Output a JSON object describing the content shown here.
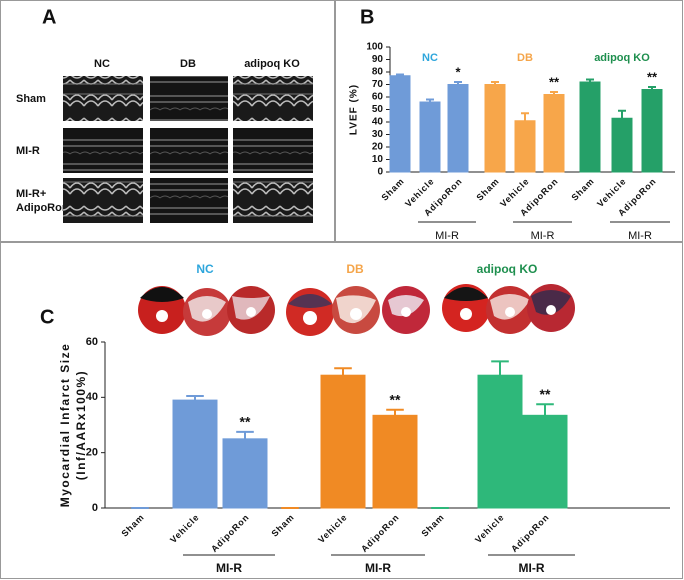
{
  "panel_a": {
    "panel_label": "A",
    "columns": [
      "NC",
      "DB",
      "adipoq KO"
    ],
    "rows": [
      "Sham",
      "MI-R",
      [
        "MI-R+",
        "AdipoRon"
      ]
    ]
  },
  "chart_data": [
    {
      "type": "bar",
      "panel_label": "B",
      "ylabel": "LVEF (%)",
      "ylim": [
        0,
        100
      ],
      "yticks": [
        0,
        10,
        20,
        30,
        40,
        50,
        60,
        70,
        80,
        90,
        100
      ],
      "groups": [
        {
          "name": "NC",
          "label_color": "#2ea6dc",
          "color": "#6f9bd8",
          "categories": [
            "Sham",
            "Vehicle",
            "AdipoRon"
          ],
          "values": [
            77,
            56,
            70
          ],
          "errors": [
            1,
            2,
            2
          ],
          "annotations": [
            null,
            null,
            "*"
          ],
          "bracket_label": "MI-R"
        },
        {
          "name": "DB",
          "label_color": "#f5a54a",
          "color": "#f7a64a",
          "categories": [
            "Sham",
            "Vehicle",
            "AdipoRon"
          ],
          "values": [
            70,
            41,
            62
          ],
          "errors": [
            2,
            6,
            2
          ],
          "annotations": [
            null,
            null,
            "**"
          ],
          "bracket_label": "MI-R"
        },
        {
          "name": "adipoq KO",
          "label_color": "#1e8f4e",
          "color": "#25a068",
          "categories": [
            "Sham",
            "Vehicle",
            "AdipoRon"
          ],
          "values": [
            72,
            43,
            66
          ],
          "errors": [
            2,
            6,
            2
          ],
          "annotations": [
            null,
            null,
            "**"
          ],
          "bracket_label": "MI-R"
        }
      ]
    },
    {
      "type": "bar",
      "panel_label": "C",
      "ylabel": [
        "Myocardial Infarct Size",
        "(Inf/AARx100%)"
      ],
      "ylim": [
        0,
        60
      ],
      "yticks": [
        0,
        20,
        40,
        60
      ],
      "groups": [
        {
          "name": "NC",
          "label_color": "#2ea6dc",
          "color": "#6f9bd8",
          "categories": [
            "Sham",
            "Vehicle",
            "AdipoRon"
          ],
          "values": [
            0,
            39,
            25
          ],
          "errors": [
            0,
            1.5,
            2.5
          ],
          "annotations": [
            null,
            null,
            "**"
          ],
          "bracket_label": "MI-R"
        },
        {
          "name": "DB",
          "label_color": "#f5a54a",
          "color": "#f08a24",
          "categories": [
            "Sham",
            "Vehicle",
            "AdipoRon"
          ],
          "values": [
            0,
            48,
            33.5
          ],
          "errors": [
            0,
            2.5,
            2
          ],
          "annotations": [
            null,
            null,
            "**"
          ],
          "bracket_label": "MI-R"
        },
        {
          "name": "adipoq KO",
          "label_color": "#1e8f4e",
          "color": "#2eb87a",
          "categories": [
            "Sham",
            "Vehicle",
            "AdipoRon"
          ],
          "values": [
            0,
            48,
            33.5
          ],
          "errors": [
            0,
            5,
            4
          ],
          "annotations": [
            null,
            null,
            "**"
          ],
          "bracket_label": "MI-R"
        }
      ]
    }
  ]
}
